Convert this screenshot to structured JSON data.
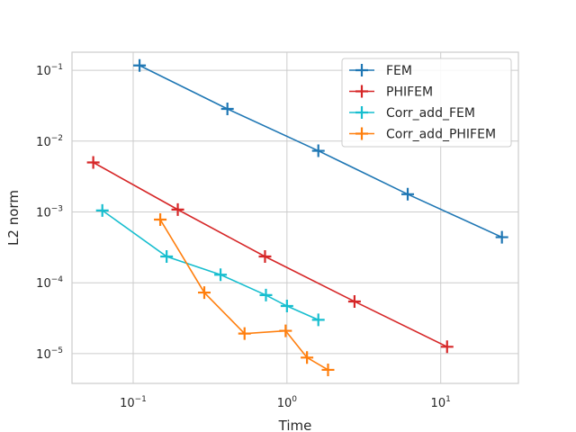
{
  "chart_data": {
    "type": "line",
    "title": "",
    "xlabel": "Time",
    "ylabel": "L2 norm",
    "xscale": "log",
    "yscale": "log",
    "xlim": [
      0.04,
      32
    ],
    "ylim": [
      3.8e-06,
      0.18
    ],
    "grid": true,
    "legend_position": "top-right",
    "x_ticks": [
      {
        "value": 0.1,
        "base": "10",
        "exp": "−1"
      },
      {
        "value": 1,
        "base": "10",
        "exp": "0"
      },
      {
        "value": 10,
        "base": "10",
        "exp": "1"
      }
    ],
    "y_ticks": [
      {
        "value": 0.1,
        "base": "10",
        "exp": "−1"
      },
      {
        "value": 0.01,
        "base": "10",
        "exp": "−2"
      },
      {
        "value": 0.001,
        "base": "10",
        "exp": "−3"
      },
      {
        "value": 0.0001,
        "base": "10",
        "exp": "−4"
      },
      {
        "value": 1e-05,
        "base": "10",
        "exp": "−5"
      }
    ],
    "series": [
      {
        "name": "FEM",
        "color": "#1f77b4",
        "x": [
          0.11,
          0.41,
          1.6,
          6.1,
          25
        ],
        "y": [
          0.117,
          0.0285,
          0.0073,
          0.00178,
          0.00044
        ]
      },
      {
        "name": "PHIFEM",
        "color": "#d62728",
        "x": [
          0.055,
          0.195,
          0.72,
          2.75,
          11
        ],
        "y": [
          0.005,
          0.00108,
          0.000235,
          5.45e-05,
          1.25e-05
        ]
      },
      {
        "name": "Corr_add_FEM",
        "color": "#17becf",
        "x": [
          0.063,
          0.165,
          0.37,
          0.73,
          1.0,
          1.6
        ],
        "y": [
          0.00105,
          0.000235,
          0.00013,
          6.7e-05,
          4.7e-05,
          3e-05
        ]
      },
      {
        "name": "Corr_add_PHIFEM",
        "color": "#ff7f0e",
        "x": [
          0.15,
          0.29,
          0.53,
          0.98,
          1.35,
          1.85
        ],
        "y": [
          0.00078,
          7.28e-05,
          1.92e-05,
          2.1e-05,
          8.8e-06,
          5.9e-06
        ]
      }
    ]
  }
}
